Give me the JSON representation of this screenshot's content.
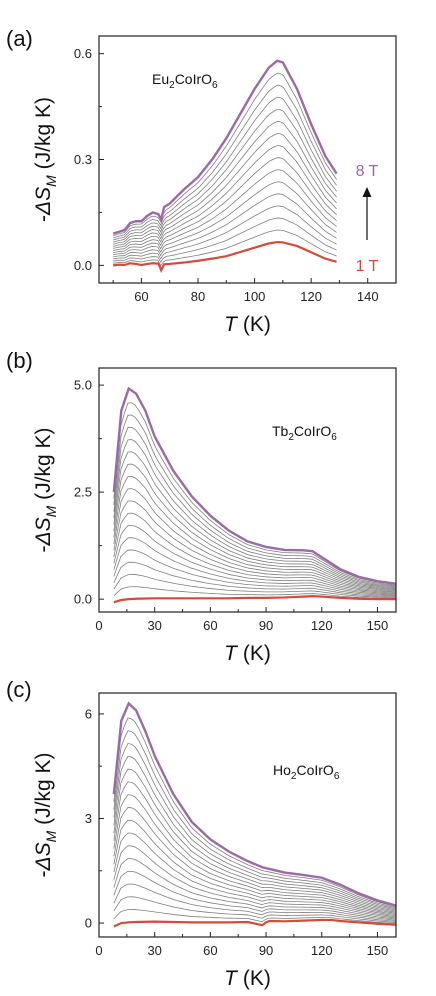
{
  "colors": {
    "min_field": "#d64a3b",
    "max_field": "#9b6aa6",
    "intermediate": "#7f7f7f",
    "axis": "#222222"
  },
  "chart_data": [
    {
      "type": "line",
      "panel": "(a)",
      "compound": {
        "prefix": "Eu",
        "sub1": "2",
        "mid": "CoIrO",
        "sub2": "6"
      },
      "xlabel": {
        "italic": "T",
        "rest": " (K)"
      },
      "ylabel": {
        "prefix": "-",
        "italic": "ΔS",
        "sub": "M",
        "rest": " (J/kg K)"
      },
      "xlim": [
        45,
        150
      ],
      "ylim": [
        -0.05,
        0.65
      ],
      "xticks": [
        60,
        80,
        100,
        120,
        140
      ],
      "yticks": [
        0.0,
        0.3,
        0.6
      ],
      "ytick_labels": [
        "0.0",
        "0.3",
        "0.6"
      ],
      "legend": {
        "top": "8 T",
        "bottom": "1 T"
      },
      "min_series": {
        "name": "1 T",
        "x": [
          50,
          52,
          54,
          56,
          58,
          60,
          62,
          64,
          66,
          67,
          68,
          70,
          75,
          80,
          85,
          90,
          95,
          100,
          105,
          108,
          110,
          115,
          120,
          125,
          129
        ],
        "y": [
          0.0,
          0.002,
          0.001,
          0.006,
          0.004,
          0.001,
          0.004,
          0.006,
          0.005,
          -0.014,
          0.003,
          0.004,
          0.008,
          0.013,
          0.019,
          0.026,
          0.038,
          0.05,
          0.062,
          0.066,
          0.065,
          0.055,
          0.037,
          0.019,
          0.01
        ]
      },
      "max_series": {
        "name": "8 T",
        "x": [
          50,
          52,
          54,
          56,
          58,
          60,
          62,
          64,
          66,
          67,
          68,
          70,
          75,
          80,
          85,
          90,
          95,
          100,
          105,
          108,
          110,
          115,
          120,
          125,
          129
        ],
        "y": [
          0.09,
          0.095,
          0.1,
          0.12,
          0.125,
          0.125,
          0.14,
          0.15,
          0.145,
          0.13,
          0.165,
          0.175,
          0.215,
          0.25,
          0.3,
          0.36,
          0.43,
          0.5,
          0.56,
          0.58,
          0.575,
          0.5,
          0.4,
          0.31,
          0.26
        ]
      },
      "intermediate_count": 14
    },
    {
      "type": "line",
      "panel": "(b)",
      "compound": {
        "prefix": "Tb",
        "sub1": "2",
        "mid": "CoIrO",
        "sub2": "6"
      },
      "xlabel": {
        "italic": "T",
        "rest": " (K)"
      },
      "ylabel": {
        "prefix": "-",
        "italic": "ΔS",
        "sub": "M",
        "rest": " (J/kg K)"
      },
      "xlim": [
        0,
        160
      ],
      "ylim": [
        -0.3,
        5.4
      ],
      "xticks": [
        0,
        30,
        60,
        90,
        120,
        150
      ],
      "yticks": [
        0.0,
        2.5,
        5.0
      ],
      "ytick_labels": [
        "0.0",
        "2.5",
        "5.0"
      ],
      "min_series": {
        "name": "",
        "x": [
          8,
          12,
          16,
          20,
          30,
          40,
          50,
          60,
          70,
          80,
          90,
          100,
          110,
          115,
          120,
          130,
          140,
          150,
          160
        ],
        "y": [
          -0.07,
          -0.02,
          0.0,
          0.01,
          0.02,
          0.02,
          0.02,
          0.02,
          0.02,
          0.03,
          0.03,
          0.04,
          0.06,
          0.07,
          0.06,
          0.03,
          0.01,
          0.0,
          0.0
        ]
      },
      "max_series": {
        "name": "",
        "x": [
          8,
          12,
          16,
          20,
          25,
          30,
          40,
          50,
          60,
          70,
          80,
          90,
          100,
          110,
          115,
          120,
          130,
          140,
          150,
          160
        ],
        "y": [
          2.5,
          4.4,
          4.92,
          4.8,
          4.4,
          3.8,
          3.0,
          2.4,
          1.95,
          1.6,
          1.35,
          1.22,
          1.15,
          1.14,
          1.12,
          0.98,
          0.7,
          0.52,
          0.42,
          0.36
        ]
      },
      "intermediate_count": 16
    },
    {
      "type": "line",
      "panel": "(c)",
      "compound": {
        "prefix": "Ho",
        "sub1": "2",
        "mid": "CoIrO",
        "sub2": "6"
      },
      "xlabel": {
        "italic": "T",
        "rest": " (K)"
      },
      "ylabel": {
        "prefix": "-",
        "italic": "ΔS",
        "sub": "M",
        "rest": " (J/kg K)"
      },
      "xlim": [
        0,
        160
      ],
      "ylim": [
        -0.4,
        6.6
      ],
      "xticks": [
        0,
        30,
        60,
        90,
        120,
        150
      ],
      "yticks": [
        0,
        3,
        6
      ],
      "ytick_labels": [
        "0",
        "3",
        "6"
      ],
      "min_series": {
        "name": "",
        "x": [
          8,
          12,
          16,
          20,
          30,
          40,
          50,
          60,
          70,
          80,
          88,
          90,
          92,
          100,
          110,
          120,
          125,
          130,
          140,
          150,
          160
        ],
        "y": [
          -0.1,
          0.0,
          0.02,
          0.03,
          0.04,
          0.03,
          0.02,
          0.02,
          0.02,
          0.03,
          -0.06,
          0.02,
          0.06,
          0.05,
          0.07,
          0.09,
          0.09,
          0.06,
          0.02,
          -0.02,
          -0.05
        ]
      },
      "max_series": {
        "name": "",
        "x": [
          8,
          12,
          16,
          20,
          25,
          30,
          40,
          50,
          60,
          70,
          80,
          88,
          92,
          100,
          110,
          120,
          130,
          140,
          150,
          160
        ],
        "y": [
          3.7,
          5.8,
          6.3,
          6.1,
          5.5,
          4.8,
          3.7,
          2.9,
          2.4,
          2.05,
          1.78,
          1.6,
          1.55,
          1.45,
          1.38,
          1.3,
          1.1,
          0.85,
          0.65,
          0.5
        ]
      },
      "intermediate_count": 16
    }
  ]
}
